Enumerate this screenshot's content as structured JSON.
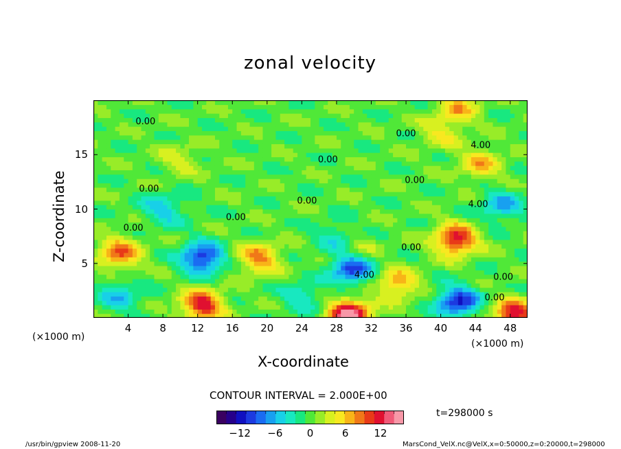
{
  "chart_data": {
    "type": "heatmap",
    "title": "zonal velocity",
    "xlabel": "X-coordinate",
    "ylabel": "Z-coordinate",
    "x_unit_left": "(×1000 m)",
    "x_unit_right": "(×1000 m)",
    "xlim": [
      0,
      50
    ],
    "ylim": [
      0,
      20
    ],
    "x_ticks": [
      "4",
      "8",
      "12",
      "16",
      "20",
      "24",
      "28",
      "32",
      "36",
      "40",
      "44",
      "48"
    ],
    "y_ticks": [
      "5",
      "10",
      "15"
    ],
    "contour_interval_text": "CONTOUR INTERVAL = 2.000E+00",
    "time_label": "t=298000 s",
    "colorbar": {
      "min": -16,
      "max": 16,
      "ticks": [
        "−12",
        "−6",
        "0",
        "6",
        "12"
      ],
      "colors": [
        "#3a0060",
        "#26008a",
        "#1010c0",
        "#1c3ae0",
        "#1a6cf2",
        "#18a0f0",
        "#18d0e8",
        "#18e8c0",
        "#18e880",
        "#50e838",
        "#98ec28",
        "#d8f020",
        "#f8e820",
        "#f8b418",
        "#f07818",
        "#e83a18",
        "#e01030",
        "#f05a78",
        "#f898a8"
      ]
    },
    "contour_labels": [
      {
        "text": "0.00",
        "x": 6,
        "z": 17.8
      },
      {
        "text": "0.00",
        "x": 36,
        "z": 16.7
      },
      {
        "text": "4.00",
        "x": 44.6,
        "z": 15.6
      },
      {
        "text": "0.00",
        "x": 27,
        "z": 14.3
      },
      {
        "text": "0.00",
        "x": 37,
        "z": 12.4
      },
      {
        "text": "0.00",
        "x": 6.4,
        "z": 11.6
      },
      {
        "text": "0.00",
        "x": 24.6,
        "z": 10.5
      },
      {
        "text": "4.00",
        "x": 44.3,
        "z": 10.2
      },
      {
        "text": "0.00",
        "x": 16.4,
        "z": 9.0
      },
      {
        "text": "0.00",
        "x": 4.6,
        "z": 8.0
      },
      {
        "text": "0.00",
        "x": 36.6,
        "z": 6.2
      },
      {
        "text": "0.00",
        "x": 47.2,
        "z": 3.5
      },
      {
        "text": "4.00",
        "x": 31.2,
        "z": 3.7
      },
      {
        "text": "0.00",
        "x": 46.2,
        "z": 1.6
      }
    ],
    "features": [
      {
        "x": 3,
        "z": 6,
        "value": 9
      },
      {
        "x": 12.5,
        "z": 5.5,
        "value": -11
      },
      {
        "x": 12.5,
        "z": 1.2,
        "value": 12
      },
      {
        "x": 19,
        "z": 5.5,
        "value": 8
      },
      {
        "x": 29.8,
        "z": 4.5,
        "value": -10
      },
      {
        "x": 29.5,
        "z": 0.3,
        "value": 15
      },
      {
        "x": 35,
        "z": 3.2,
        "value": 7
      },
      {
        "x": 41.7,
        "z": 7.2,
        "value": 12
      },
      {
        "x": 42,
        "z": 1.5,
        "value": -11
      },
      {
        "x": 48.5,
        "z": 0.3,
        "value": 12
      },
      {
        "x": 47,
        "z": 10.3,
        "value": -6
      },
      {
        "x": 28,
        "z": 7.5,
        "value": -4
      },
      {
        "x": 30.5,
        "z": 6.5,
        "value": 3
      },
      {
        "x": 3,
        "z": 2,
        "value": -5
      },
      {
        "x": 24,
        "z": 2,
        "value": -4
      },
      {
        "x": 8,
        "z": 10,
        "value": -5
      },
      {
        "x": 10,
        "z": 14.5,
        "value": 3
      },
      {
        "x": 44.5,
        "z": 14.2,
        "value": 6
      },
      {
        "x": 40,
        "z": 17,
        "value": 4
      },
      {
        "x": 42,
        "z": 19.3,
        "value": 6
      }
    ]
  },
  "footer": {
    "left": "/usr/bin/gpview 2008-11-20",
    "right": "MarsCond_VelX.nc@VelX,x=0:50000,z=0:20000,t=298000"
  }
}
